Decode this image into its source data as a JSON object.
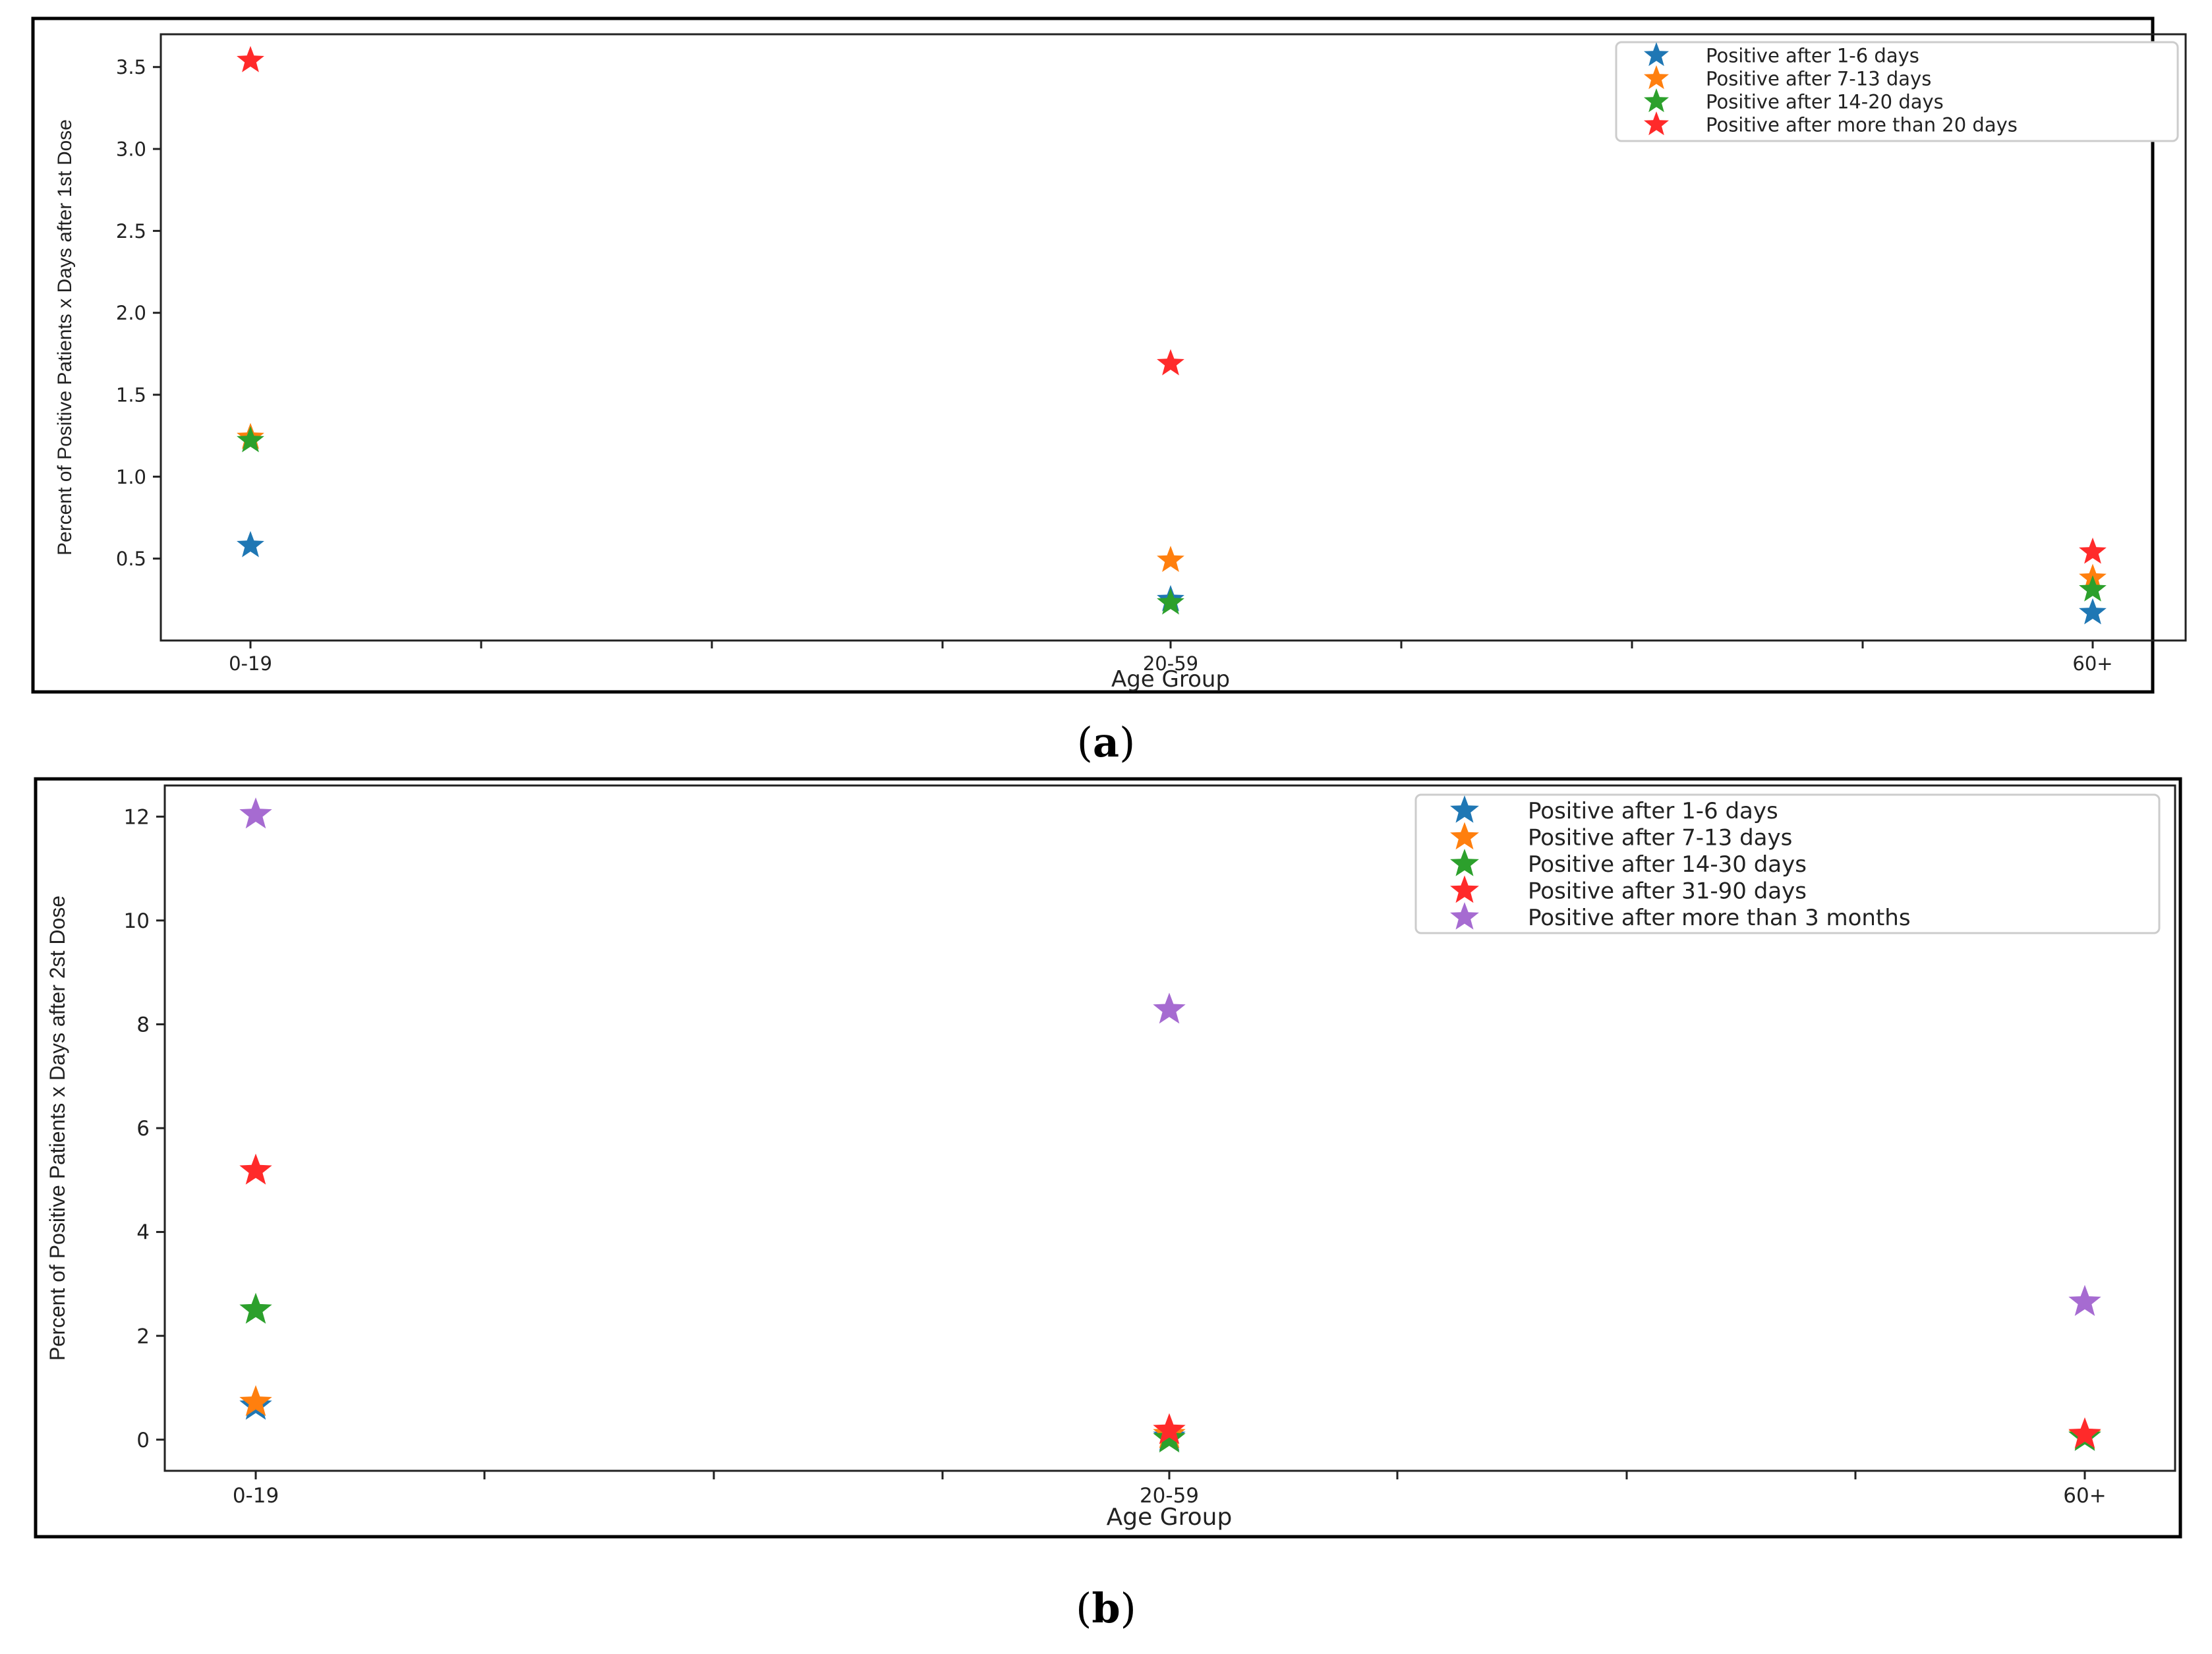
{
  "chart_data": [
    {
      "type": "scatter",
      "caption_letter": "a",
      "title": "",
      "xlabel": "Age Group",
      "ylabel": "Percent of Positive Patients x Days after 1st Dose",
      "categories": [
        "0-19",
        "20-59",
        "60+"
      ],
      "ylim": [
        0.0,
        3.7
      ],
      "yticks": [
        "0.5",
        "1.0",
        "1.5",
        "2.0",
        "2.5",
        "3.0",
        "3.5"
      ],
      "legend_position": "top-right",
      "marker": "star",
      "series": [
        {
          "name": "Positive after 1-6 days",
          "color": "#1f77b4",
          "values": [
            0.58,
            0.25,
            0.17
          ]
        },
        {
          "name": "Positive after 7-13 days",
          "color": "#ff7f0e",
          "values": [
            1.24,
            0.49,
            0.38
          ]
        },
        {
          "name": "Positive after 14-20 days",
          "color": "#2ca02c",
          "values": [
            1.22,
            0.23,
            0.31
          ]
        },
        {
          "name": "Positive after more than 20 days",
          "color": "#ff2a2a",
          "values": [
            3.54,
            1.69,
            0.54
          ]
        }
      ]
    },
    {
      "type": "scatter",
      "caption_letter": "b",
      "title": "",
      "xlabel": "Age Group",
      "ylabel": "Percent of Positive Patients x Days after 2st Dose",
      "categories": [
        "0-19",
        "20-59",
        "60+"
      ],
      "ylim": [
        -0.6,
        12.6
      ],
      "yticks": [
        "0",
        "2",
        "4",
        "6",
        "8",
        "10",
        "12"
      ],
      "legend_position": "top-right",
      "marker": "star",
      "series": [
        {
          "name": "Positive after 1-6 days",
          "color": "#1f77b4",
          "values": [
            0.65,
            0.05,
            0.05
          ]
        },
        {
          "name": "Positive after 7-13 days",
          "color": "#ff7f0e",
          "values": [
            0.72,
            0.1,
            0.08
          ]
        },
        {
          "name": "Positive after 14-30 days",
          "color": "#2ca02c",
          "values": [
            2.5,
            0.02,
            0.05
          ]
        },
        {
          "name": "Positive after 31-90 days",
          "color": "#ff2a2a",
          "values": [
            5.18,
            0.18,
            0.1
          ]
        },
        {
          "name": "Positive after more than 3 months",
          "color": "#a66bd1",
          "values": [
            12.04,
            8.28,
            2.65
          ]
        }
      ]
    }
  ]
}
